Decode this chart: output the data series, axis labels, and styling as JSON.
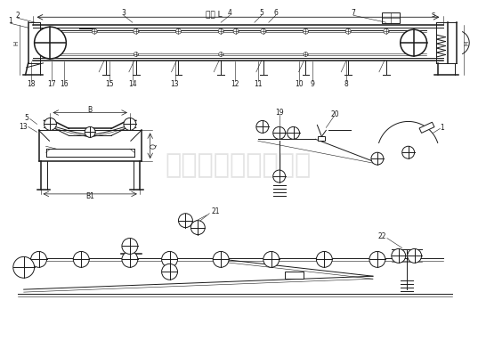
{
  "bg_color": "#ffffff",
  "line_color": "#1a1a1a",
  "watermark_color": "#bbbbbb",
  "watermark_text": "新乡市同鑫振动机械",
  "title_text": "机长 L",
  "label_s": "s",
  "fig_width": 5.37,
  "fig_height": 4.01,
  "dpi": 100
}
